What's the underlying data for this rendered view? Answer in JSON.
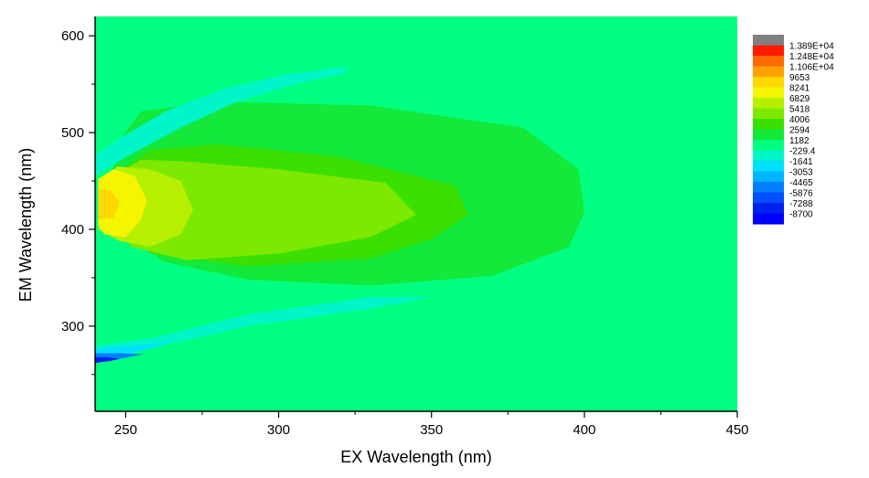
{
  "chart_data": {
    "type": "heatmap",
    "title": "",
    "xlabel": "EX Wavelength (nm)",
    "ylabel": "EM Wavelength (nm)",
    "xlim": [
      240,
      450
    ],
    "ylim": [
      212,
      620
    ],
    "x_ticks": [
      250,
      300,
      350,
      400,
      450
    ],
    "y_ticks": [
      300,
      400,
      500,
      600
    ],
    "grid": false,
    "legend_position": "right",
    "legend": {
      "levels": [
        "1.389E+04",
        "1.248E+04",
        "1.106E+04",
        "9653",
        "8241",
        "6829",
        "5418",
        "4006",
        "2594",
        "1182",
        "-229.4",
        "-1641",
        "-3053",
        "-4465",
        "-5876",
        "-7288",
        "-8700"
      ],
      "colors": [
        "#808080",
        "#ff1a00",
        "#ff6a00",
        "#ffa200",
        "#ffd700",
        "#f5f500",
        "#b6f000",
        "#7de800",
        "#3be000",
        "#14e83a",
        "#00ff80",
        "#00f5c8",
        "#00e0ff",
        "#00b4ff",
        "#0080ff",
        "#0050ff",
        "#0020f0",
        "#0000ff"
      ]
    },
    "background_level": "1182",
    "regions": [
      {
        "level": "2594",
        "outline": [
          [
            262,
            367
          ],
          [
            290,
            348
          ],
          [
            330,
            342
          ],
          [
            370,
            352
          ],
          [
            395,
            382
          ],
          [
            400,
            418
          ],
          [
            398,
            462
          ],
          [
            380,
            505
          ],
          [
            330,
            528
          ],
          [
            280,
            532
          ],
          [
            255,
            522
          ],
          [
            248,
            492
          ],
          [
            243,
            420
          ]
        ]
      },
      {
        "level": "4006",
        "outline": [
          [
            258,
            375
          ],
          [
            290,
            362
          ],
          [
            330,
            370
          ],
          [
            350,
            390
          ],
          [
            362,
            415
          ],
          [
            358,
            445
          ],
          [
            320,
            475
          ],
          [
            280,
            488
          ],
          [
            258,
            482
          ],
          [
            249,
            462
          ],
          [
            244,
            420
          ]
        ]
      },
      {
        "level": "5418",
        "outline": [
          [
            252,
            382
          ],
          [
            270,
            368
          ],
          [
            300,
            375
          ],
          [
            330,
            392
          ],
          [
            345,
            415
          ],
          [
            335,
            448
          ],
          [
            300,
            462
          ],
          [
            270,
            470
          ],
          [
            255,
            472
          ],
          [
            246,
            455
          ],
          [
            242,
            420
          ]
        ]
      },
      {
        "level": "6829",
        "outline": [
          [
            248,
            388
          ],
          [
            258,
            382
          ],
          [
            268,
            395
          ],
          [
            272,
            420
          ],
          [
            268,
            450
          ],
          [
            258,
            462
          ],
          [
            247,
            465
          ],
          [
            242,
            440
          ],
          [
            241,
            400
          ]
        ]
      },
      {
        "level": "8241",
        "outline": [
          [
            243,
            395
          ],
          [
            250,
            392
          ],
          [
            255,
            410
          ],
          [
            257,
            430
          ],
          [
            253,
            455
          ],
          [
            246,
            462
          ],
          [
            241,
            452
          ],
          [
            241,
            405
          ]
        ]
      },
      {
        "level": "9653",
        "outline": [
          [
            241,
            410
          ],
          [
            246,
            412
          ],
          [
            248,
            428
          ],
          [
            245,
            440
          ],
          [
            241,
            442
          ]
        ]
      },
      {
        "level": "-229.4",
        "outline": [
          [
            240,
            263
          ],
          [
            258,
            277
          ],
          [
            290,
            300
          ],
          [
            330,
            318
          ],
          [
            350,
            330
          ],
          [
            330,
            330
          ],
          [
            290,
            312
          ],
          [
            258,
            287
          ],
          [
            240,
            280
          ]
        ]
      },
      {
        "level": "-1641",
        "outline": [
          [
            240,
            262
          ],
          [
            252,
            272
          ],
          [
            265,
            283
          ],
          [
            252,
            280
          ],
          [
            240,
            276
          ]
        ]
      },
      {
        "level": "-4465",
        "outline": [
          [
            240,
            262
          ],
          [
            248,
            266
          ],
          [
            256,
            271
          ],
          [
            248,
            272
          ],
          [
            240,
            272
          ]
        ]
      },
      {
        "level": "-7288",
        "outline": [
          [
            240,
            262
          ],
          [
            245,
            264
          ],
          [
            248,
            266
          ],
          [
            244,
            268
          ],
          [
            240,
            268
          ]
        ]
      },
      {
        "level": "-229.4",
        "outline": [
          [
            240,
            456
          ],
          [
            252,
            478
          ],
          [
            268,
            505
          ],
          [
            285,
            530
          ],
          [
            303,
            548
          ],
          [
            322,
            562
          ],
          [
            322,
            568
          ],
          [
            302,
            560
          ],
          [
            282,
            545
          ],
          [
            263,
            522
          ],
          [
            248,
            494
          ],
          [
            240,
            476
          ]
        ]
      }
    ]
  }
}
